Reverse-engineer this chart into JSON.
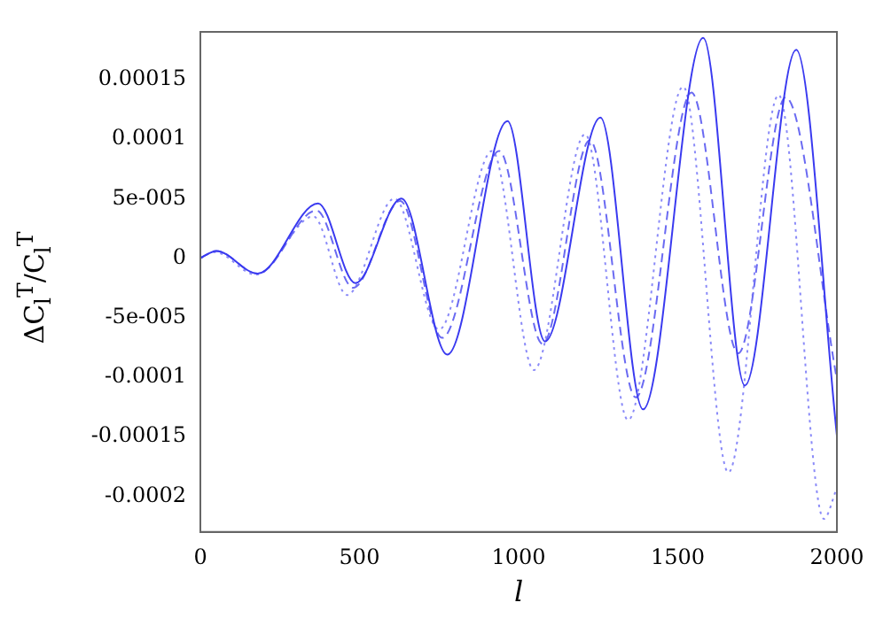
{
  "chart_data": {
    "type": "line",
    "xlabel": "l",
    "ylabel": "ΔC$_{l}$$^{T}$/C$_{l}$$^{T}$",
    "xlim": [
      0,
      2000
    ],
    "xticks": [
      0,
      500,
      1000,
      1500,
      2000
    ],
    "ylim": [
      -0.00023,
      0.00019
    ],
    "yticks": [
      -0.0002,
      -0.00015,
      -0.0001,
      {
        "value": -5e-05,
        "label": "-5e-005"
      },
      0,
      {
        "value": 5e-05,
        "label": "5e-005"
      },
      0.0001,
      0.00015
    ],
    "grid": false,
    "legend": false,
    "marker": "none",
    "series": [
      {
        "color": "#3a3af0",
        "line_style": "solid",
        "x": [
          0,
          50,
          180,
          370,
          487,
          632,
          776,
          965,
          1083,
          1257,
          1391,
          1580,
          1711,
          1872,
          2000
        ],
        "values": [
          0,
          6e-06,
          -1.3e-05,
          4.6e-05,
          -2.1e-05,
          5e-05,
          -8.1e-05,
          0.000115,
          -7e-05,
          0.000118,
          -0.000127,
          0.000185,
          -0.000107,
          0.000175,
          -0.000149
        ]
      },
      {
        "color": "#6a6af2",
        "line_style": "dashed",
        "x": [
          0,
          50,
          180,
          365,
          480,
          628,
          760,
          939,
          1075,
          1224,
          1368,
          1543,
          1690,
          1839,
          2000
        ],
        "values": [
          0,
          6e-06,
          -1.3e-05,
          4e-05,
          -2.5e-05,
          4.8e-05,
          -6.7e-05,
          9e-05,
          -7.2e-05,
          9.9e-05,
          -0.000117,
          0.000139,
          -8e-05,
          0.000135,
          -0.000102
        ]
      },
      {
        "color": "#8a8af8",
        "line_style": "dotted",
        "x": [
          0,
          45,
          175,
          355,
          461,
          610,
          750,
          917,
          1048,
          1209,
          1344,
          1517,
          1659,
          1817,
          1959,
          2000
        ],
        "values": [
          0,
          5e-06,
          -1.4e-05,
          3.5e-05,
          -3.1e-05,
          5e-05,
          -6e-05,
          9e-05,
          -9.4e-05,
          0.000104,
          -0.000136,
          0.000144,
          -0.00018,
          0.000137,
          -0.000219,
          -0.000193
        ]
      }
    ]
  }
}
